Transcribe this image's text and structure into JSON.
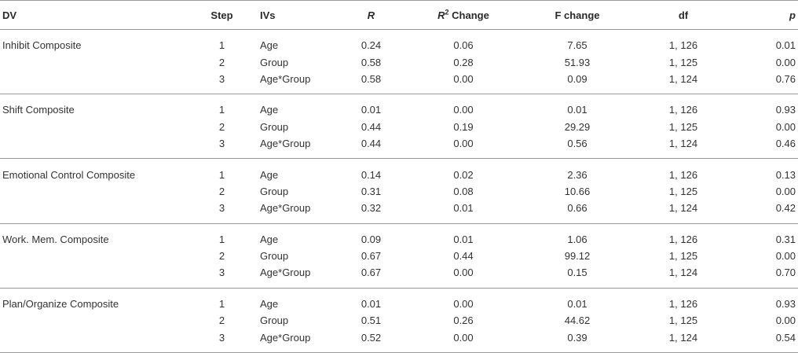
{
  "table": {
    "headers": {
      "dv": "DV",
      "step": "Step",
      "ivs": "IVs",
      "r": "R",
      "r2_base": "R",
      "r2_sup": "2",
      "r2_rest": " Change",
      "f_change": "F change",
      "df": "df",
      "p": "p"
    },
    "groups": [
      {
        "dv": "Inhibit Composite",
        "rows": [
          {
            "step": "1",
            "iv": "Age",
            "r": "0.24",
            "r2": "0.06",
            "f": "7.65",
            "df": "1, 126",
            "p": "0.01"
          },
          {
            "step": "2",
            "iv": "Group",
            "r": "0.58",
            "r2": "0.28",
            "f": "51.93",
            "df": "1, 125",
            "p": "0.00"
          },
          {
            "step": "3",
            "iv": "Age*Group",
            "r": "0.58",
            "r2": "0.00",
            "f": "0.09",
            "df": "1, 124",
            "p": "0.76"
          }
        ]
      },
      {
        "dv": "Shift Composite",
        "rows": [
          {
            "step": "1",
            "iv": "Age",
            "r": "0.01",
            "r2": "0.00",
            "f": "0.01",
            "df": "1, 126",
            "p": "0.93"
          },
          {
            "step": "2",
            "iv": "Group",
            "r": "0.44",
            "r2": "0.19",
            "f": "29.29",
            "df": "1, 125",
            "p": "0.00"
          },
          {
            "step": "3",
            "iv": "Age*Group",
            "r": "0.44",
            "r2": "0.00",
            "f": "0.56",
            "df": "1, 124",
            "p": "0.46"
          }
        ]
      },
      {
        "dv": "Emotional Control Composite",
        "rows": [
          {
            "step": "1",
            "iv": "Age",
            "r": "0.14",
            "r2": "0.02",
            "f": "2.36",
            "df": "1, 126",
            "p": "0.13"
          },
          {
            "step": "2",
            "iv": "Group",
            "r": "0.31",
            "r2": "0.08",
            "f": "10.66",
            "df": "1, 125",
            "p": "0.00"
          },
          {
            "step": "3",
            "iv": "Age*Group",
            "r": "0.32",
            "r2": "0.01",
            "f": "0.66",
            "df": "1, 124",
            "p": "0.42"
          }
        ]
      },
      {
        "dv": "Work. Mem. Composite",
        "rows": [
          {
            "step": "1",
            "iv": "Age",
            "r": "0.09",
            "r2": "0.01",
            "f": "1.06",
            "df": "1, 126",
            "p": "0.31"
          },
          {
            "step": "2",
            "iv": "Group",
            "r": "0.67",
            "r2": "0.44",
            "f": "99.12",
            "df": "1, 125",
            "p": "0.00"
          },
          {
            "step": "3",
            "iv": "Age*Group",
            "r": "0.67",
            "r2": "0.00",
            "f": "0.15",
            "df": "1, 124",
            "p": "0.70"
          }
        ]
      },
      {
        "dv": "Plan/Organize Composite",
        "rows": [
          {
            "step": "1",
            "iv": "Age",
            "r": "0.01",
            "r2": "0.00",
            "f": "0.01",
            "df": "1, 126",
            "p": "0.93"
          },
          {
            "step": "2",
            "iv": "Group",
            "r": "0.51",
            "r2": "0.26",
            "f": "44.62",
            "df": "1, 125",
            "p": "0.00"
          },
          {
            "step": "3",
            "iv": "Age*Group",
            "r": "0.52",
            "r2": "0.00",
            "f": "0.39",
            "df": "1, 124",
            "p": "0.54"
          }
        ]
      }
    ]
  }
}
